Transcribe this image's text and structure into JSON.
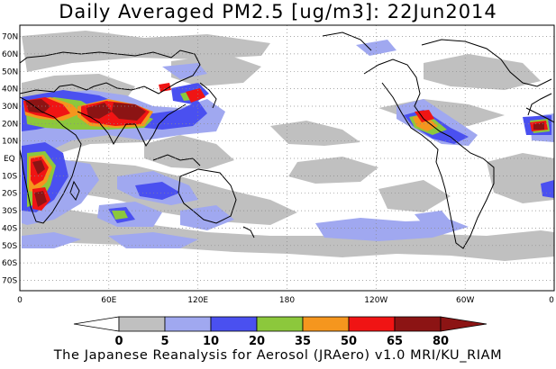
{
  "title": "Daily Averaged PM2.5 [ug/m3]: 22Jun2014",
  "footer": "The Japanese Reanalysis for Aerosol (JRAero) v1.0 MRI/KU_RIAM",
  "lat_labels": [
    "70N",
    "60N",
    "50N",
    "40N",
    "30N",
    "20N",
    "10N",
    "EQ",
    "10S",
    "20S",
    "30S",
    "40S",
    "50S",
    "60S",
    "70S"
  ],
  "lon_labels": [
    "0",
    "60E",
    "120E",
    "180",
    "120W",
    "60W",
    "0"
  ],
  "colorbar": {
    "levels": [
      "0",
      "5",
      "10",
      "20",
      "35",
      "50",
      "65",
      "80"
    ],
    "colors": [
      "#ffffff",
      "#c0c0c0",
      "#a0a8f0",
      "#4a50f0",
      "#8cc83c",
      "#f5961e",
      "#f01414",
      "#8c1414"
    ]
  }
}
